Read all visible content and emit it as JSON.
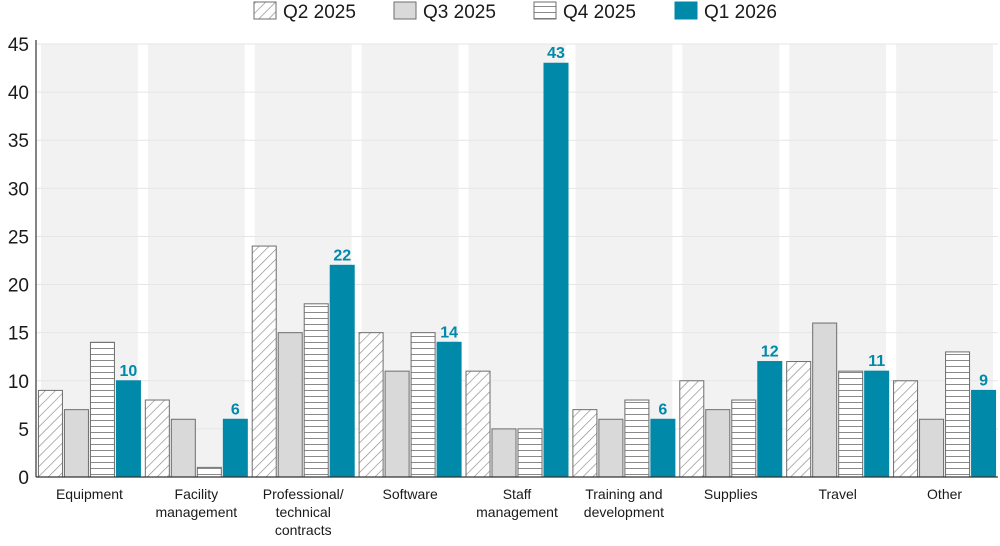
{
  "colors": {
    "band": "#f2f2f2",
    "q2_fill": "#ffffff",
    "q3_fill": "#d9d9d9",
    "q4_fill": "#ffffff",
    "q1_fill": "#0089a8",
    "stroke": "#6e6e6e",
    "label": "#0089a8",
    "grid": "#e6e6e6",
    "axis": "#333333"
  },
  "chart_data": {
    "type": "bar",
    "title": "",
    "xlabel": "",
    "ylabel": "",
    "ylim": [
      0,
      45
    ],
    "yticks": [
      0,
      5,
      10,
      15,
      20,
      25,
      30,
      35,
      40,
      45
    ],
    "grid": true,
    "legend": "top-center",
    "categories": [
      [
        "Equipment"
      ],
      [
        "Facility",
        "management"
      ],
      [
        "Professional/",
        "technical",
        "contracts"
      ],
      [
        "Software"
      ],
      [
        "Staff",
        "management"
      ],
      [
        "Training and",
        "development"
      ],
      [
        "Supplies"
      ],
      [
        "Travel"
      ],
      [
        "Other"
      ]
    ],
    "series": [
      {
        "name": "Q2 2025",
        "pattern": "diagonal",
        "values": [
          9,
          8,
          24,
          15,
          11,
          7,
          10,
          12,
          10
        ]
      },
      {
        "name": "Q3 2025",
        "pattern": "solid-gray",
        "values": [
          7,
          6,
          15,
          11,
          5,
          6,
          7,
          16,
          6
        ]
      },
      {
        "name": "Q4 2025",
        "pattern": "horizontal",
        "values": [
          14,
          1,
          18,
          15,
          5,
          8,
          8,
          11,
          13
        ]
      },
      {
        "name": "Q1 2026",
        "pattern": "solid-teal",
        "values": [
          10,
          6,
          22,
          14,
          43,
          6,
          12,
          11,
          9
        ],
        "show_labels": true
      }
    ]
  }
}
